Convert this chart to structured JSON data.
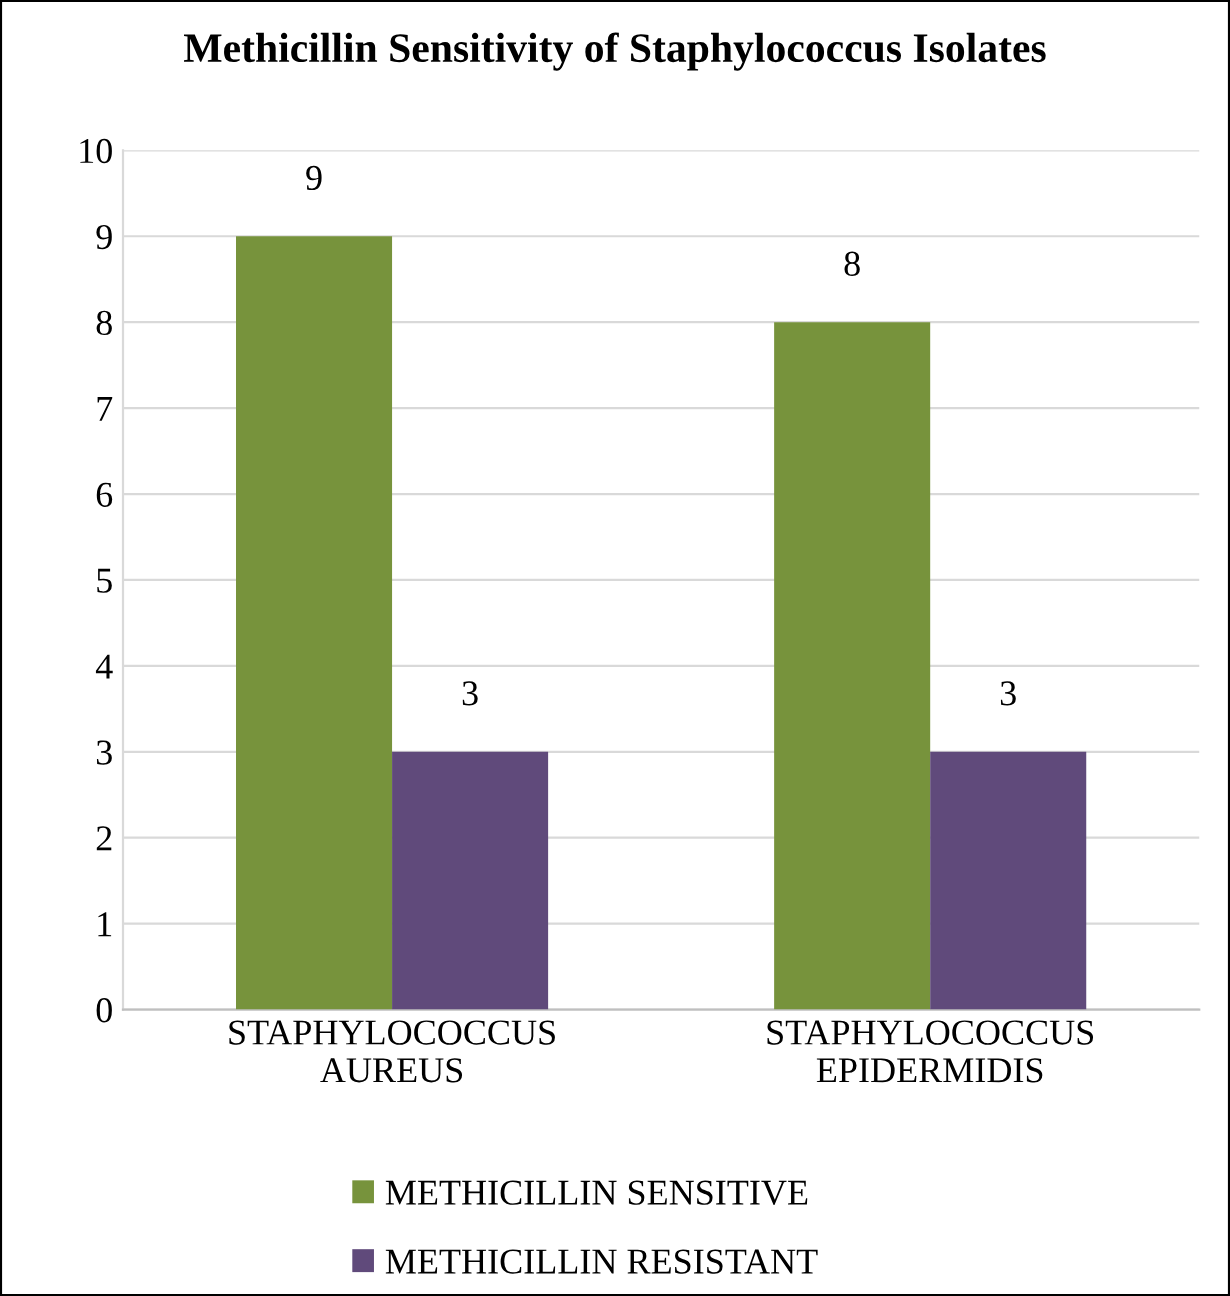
{
  "chart_data": {
    "type": "bar",
    "title": "Methicillin Sensitivity of Staphylococcus Isolates",
    "categories": [
      "STAPHYLOCOCCUS\nAUREUS",
      "STAPHYLOCOCCUS\nEPIDERMIDIS"
    ],
    "series": [
      {
        "name": "METHICILLIN SENSITIVE",
        "color": "#77933c",
        "values": [
          9,
          8
        ]
      },
      {
        "name": "METHICILLIN RESISTANT",
        "color": "#604a7b",
        "values": [
          3,
          3
        ]
      }
    ],
    "ylim": [
      0,
      10
    ],
    "yticks": [
      0,
      1,
      2,
      3,
      4,
      5,
      6,
      7,
      8,
      9,
      10
    ],
    "grid": "y",
    "legend": "bottom",
    "data_labels": true
  }
}
